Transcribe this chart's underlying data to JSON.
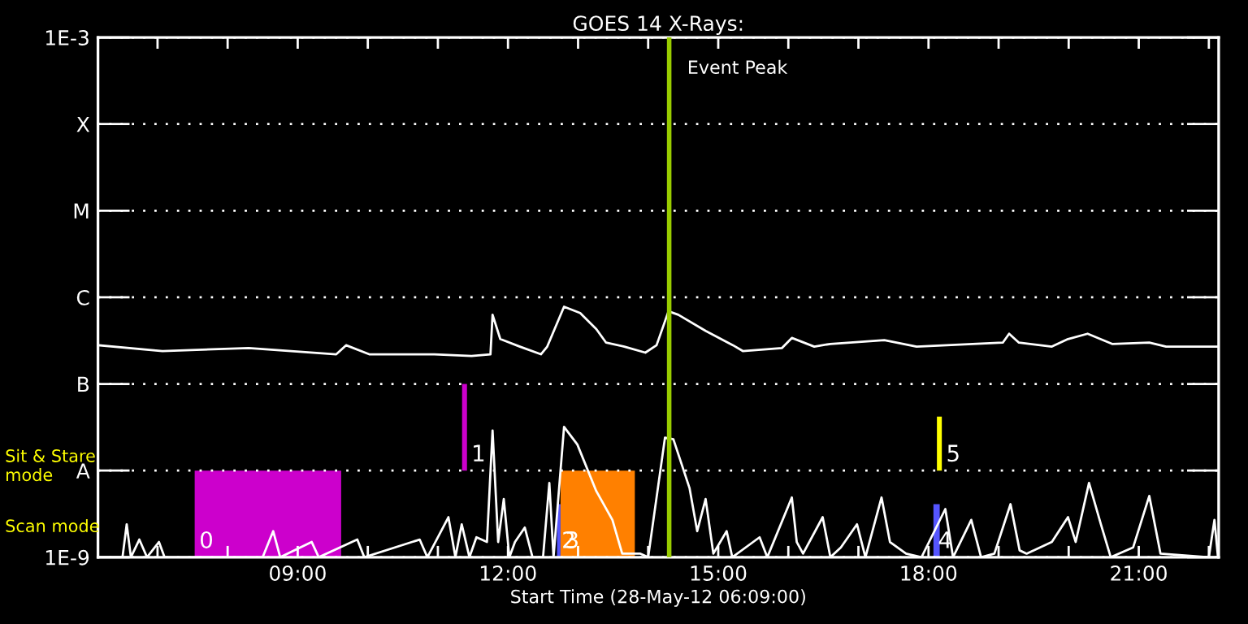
{
  "chart_data": {
    "type": "line",
    "title": "GOES 14 X-Rays:",
    "xlabel": "Start Time (28-May-12 06:09:00)",
    "xlim": [
      6.15,
      22.14
    ],
    "log": true,
    "ylim": [
      1e-09,
      0.001
    ],
    "xticks": [
      {
        "value": 7,
        "label": null
      },
      {
        "value": 8,
        "label": null
      },
      {
        "value": 9,
        "label": "09:00"
      },
      {
        "value": 10,
        "label": null
      },
      {
        "value": 11,
        "label": null
      },
      {
        "value": 12,
        "label": "12:00"
      },
      {
        "value": 13,
        "label": null
      },
      {
        "value": 14,
        "label": null
      },
      {
        "value": 15,
        "label": "15:00"
      },
      {
        "value": 16,
        "label": null
      },
      {
        "value": 17,
        "label": null
      },
      {
        "value": 18,
        "label": "18:00"
      },
      {
        "value": 19,
        "label": null
      },
      {
        "value": 20,
        "label": null
      },
      {
        "value": 21,
        "label": "21:00"
      },
      {
        "value": 22,
        "label": null
      }
    ],
    "yticks": [
      {
        "value": 1e-09,
        "label": "1E-9"
      },
      {
        "value": 1e-08,
        "label": "A"
      },
      {
        "value": 1e-07,
        "label": "B"
      },
      {
        "value": 1e-06,
        "label": "C"
      },
      {
        "value": 1e-05,
        "label": "M"
      },
      {
        "value": 0.0001,
        "label": "X"
      },
      {
        "value": 0.001,
        "label": "1E-3"
      }
    ],
    "grid": "y",
    "legend": false,
    "series": [
      {
        "color": "#ffffff",
        "x": [
          6.16,
          7.07,
          8.3,
          9.55,
          9.69,
          10.02,
          10.95,
          11.48,
          11.75,
          11.78,
          11.89,
          12.17,
          12.47,
          12.56,
          12.8,
          13.03,
          13.26,
          13.4,
          13.66,
          13.96,
          14.12,
          14.29,
          14.43,
          14.82,
          15.21,
          15.35,
          15.91,
          16.05,
          16.37,
          16.6,
          17.37,
          17.83,
          19.06,
          19.15,
          19.29,
          19.76,
          19.99,
          20.27,
          20.62,
          21.15,
          21.39,
          22.13
        ],
        "values": [
          2.8e-07,
          2.4e-07,
          2.6e-07,
          2.2e-07,
          2.8e-07,
          2.2e-07,
          2.2e-07,
          2.1e-07,
          2.2e-07,
          6.3e-07,
          3.3e-07,
          2.7e-07,
          2.2e-07,
          2.7e-07,
          7.8e-07,
          6.6e-07,
          4.3e-07,
          3e-07,
          2.7e-07,
          2.3e-07,
          2.8e-07,
          6.9e-07,
          6.3e-07,
          4.1e-07,
          2.8e-07,
          2.4e-07,
          2.6e-07,
          3.4e-07,
          2.7e-07,
          2.9e-07,
          3.2e-07,
          2.7e-07,
          3e-07,
          3.8e-07,
          3e-07,
          2.7e-07,
          3.3e-07,
          3.8e-07,
          2.9e-07,
          3e-07,
          2.7e-07,
          2.7e-07
        ]
      },
      {
        "color": "#ffffff",
        "x": [
          6.16,
          6.5,
          6.56,
          6.62,
          6.74,
          6.85,
          7.02,
          7.1,
          8.5,
          8.65,
          8.75,
          9.2,
          9.3,
          9.85,
          9.95,
          10.74,
          10.85,
          11.15,
          11.25,
          11.34,
          11.45,
          11.55,
          11.7,
          11.78,
          11.86,
          11.94,
          12.02,
          12.1,
          12.24,
          12.35,
          12.5,
          12.59,
          12.65,
          12.8,
          12.99,
          13.26,
          13.49,
          13.63,
          13.89,
          14.0,
          14.24,
          14.36,
          14.59,
          14.7,
          14.82,
          14.93,
          15.12,
          15.2,
          15.59,
          15.7,
          16.05,
          16.12,
          16.21,
          16.49,
          16.6,
          16.75,
          16.98,
          17.1,
          17.33,
          17.45,
          17.68,
          17.9,
          18.24,
          18.35,
          18.61,
          18.75,
          18.94,
          19.17,
          19.3,
          19.4,
          19.76,
          19.99,
          20.1,
          20.29,
          20.46,
          20.6,
          20.92,
          21.15,
          21.31,
          22.0,
          22.08,
          22.13
        ],
        "values": [
          1e-09,
          1e-09,
          2.4e-09,
          1e-09,
          1.6e-09,
          1e-09,
          1.5e-09,
          1e-09,
          1e-09,
          2e-09,
          1e-09,
          1.5e-09,
          1e-09,
          1.6e-09,
          1e-09,
          1.6e-09,
          1e-09,
          2.9e-09,
          1e-09,
          2.4e-09,
          1e-09,
          1.7e-09,
          1.5e-09,
          2.9e-08,
          1.5e-09,
          4.7e-09,
          1e-09,
          1.5e-09,
          2.2e-09,
          1e-09,
          1e-09,
          7.2e-09,
          1e-09,
          3.2e-08,
          2e-08,
          5.8e-09,
          2.7e-09,
          1.1e-09,
          1.1e-09,
          1e-09,
          2.4e-08,
          2.3e-08,
          6.3e-09,
          2e-09,
          4.7e-09,
          1.1e-09,
          2e-09,
          1e-09,
          1.7e-09,
          1e-09,
          4.9e-09,
          1.5e-09,
          1.1e-09,
          2.9e-09,
          1e-09,
          1.3e-09,
          2.4e-09,
          1e-09,
          4.9e-09,
          1.5e-09,
          1.1e-09,
          1e-09,
          3.6e-09,
          1e-09,
          2.7e-09,
          1e-09,
          1.1e-09,
          4.1e-09,
          1.2e-09,
          1.1e-09,
          1.5e-09,
          2.9e-09,
          1.5e-09,
          7.2e-09,
          2.4e-09,
          1e-09,
          1.3e-09,
          5.1e-09,
          1.1e-09,
          1e-09,
          2.7e-09,
          1e-09
        ]
      },
      {
        "type": "area",
        "name": "0",
        "color": "#cc00cc",
        "x": [
          7.53,
          9.62
        ],
        "values": [
          1e-08,
          1e-08
        ]
      },
      {
        "type": "bar",
        "name": "1",
        "color": "#cc00cc",
        "x": [
          11.38
        ],
        "values": [
          9e-08
        ],
        "base": [
          1e-08
        ]
      },
      {
        "type": "area",
        "name": "2",
        "color": "#5555ff",
        "x": [
          12.7,
          12.75
        ],
        "values": [
          4.1e-09,
          4.1e-09
        ]
      },
      {
        "type": "area",
        "name": "3",
        "color": "#ff8000",
        "x": [
          12.75,
          13.81
        ],
        "values": [
          1e-08,
          1e-08
        ]
      },
      {
        "type": "area",
        "name": "4",
        "color": "#5555ff",
        "x": [
          18.07,
          18.16
        ],
        "values": [
          4.1e-09,
          4.1e-09
        ]
      },
      {
        "type": "bar",
        "name": "5",
        "color": "#ffff00",
        "x": [
          18.155
        ],
        "values": [
          3.2e-08
        ],
        "base": [
          1e-08
        ]
      }
    ],
    "ref_lines": [
      {
        "axis": "x",
        "value": 14.3,
        "label": "Event Peak",
        "color": "#99cc00"
      }
    ],
    "annotations": [
      "Sit & Stare\nmode",
      "Scan mode"
    ]
  }
}
